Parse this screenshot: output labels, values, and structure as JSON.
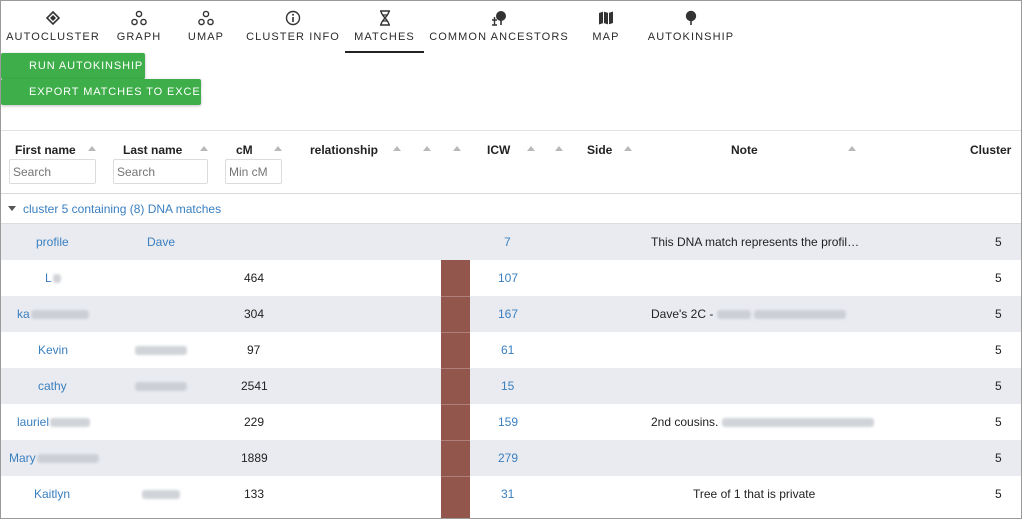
{
  "nav": {
    "tabs": [
      {
        "label": "AUTOCLUSTER",
        "icon": "autocluster-icon"
      },
      {
        "label": "GRAPH",
        "icon": "graph-icon"
      },
      {
        "label": "UMAP",
        "icon": "umap-icon"
      },
      {
        "label": "CLUSTER INFO",
        "icon": "info-icon"
      },
      {
        "label": "MATCHES",
        "icon": "dna-icon",
        "active": true
      },
      {
        "label": "COMMON ANCESTORS",
        "icon": "ancestors-icon"
      },
      {
        "label": "MAP",
        "icon": "map-icon"
      },
      {
        "label": "AUTOKINSHIP",
        "icon": "tree-icon"
      }
    ]
  },
  "actions": {
    "run_autokinship": "RUN AUTOKINSHIP",
    "export_excel": "EXPORT MATCHES TO EXCEL"
  },
  "table": {
    "headers": {
      "first_name": "First name",
      "last_name": "Last name",
      "cm": "cM",
      "relationship": "relationship",
      "icw": "ICW",
      "side": "Side",
      "note": "Note",
      "cluster": "Cluster"
    },
    "filters": {
      "first_name_placeholder": "Search",
      "last_name_placeholder": "Search",
      "cm_placeholder": "Min cM"
    },
    "group_label": "cluster 5 containing (8) DNA matches",
    "relationship_color": "#92564c",
    "rows": [
      {
        "first": "profile",
        "last": "Dave",
        "cm": "",
        "icw": "7",
        "note": "This DNA match represents the profil…",
        "cluster": "5"
      },
      {
        "first": "L",
        "last": "",
        "cm": "464",
        "icw": "107",
        "note": "",
        "cluster": "5"
      },
      {
        "first": "ka",
        "last": "",
        "cm": "304",
        "icw": "167",
        "note": "Dave's 2C -",
        "cluster": "5"
      },
      {
        "first": "Kevin",
        "last": "",
        "cm": "97",
        "icw": "61",
        "note": "",
        "cluster": "5"
      },
      {
        "first": "cathy",
        "last": "",
        "cm": "2541",
        "icw": "15",
        "note": "",
        "cluster": "5"
      },
      {
        "first": "lauriel",
        "last": "",
        "cm": "229",
        "icw": "159",
        "note": "2nd cousins.",
        "cluster": "5"
      },
      {
        "first": "Mary",
        "last": "",
        "cm": "1889",
        "icw": "279",
        "note": "",
        "cluster": "5"
      },
      {
        "first": "Kaitlyn",
        "last": "",
        "cm": "133",
        "icw": "31",
        "note": "Tree of 1 that is private",
        "cluster": "5"
      }
    ]
  }
}
